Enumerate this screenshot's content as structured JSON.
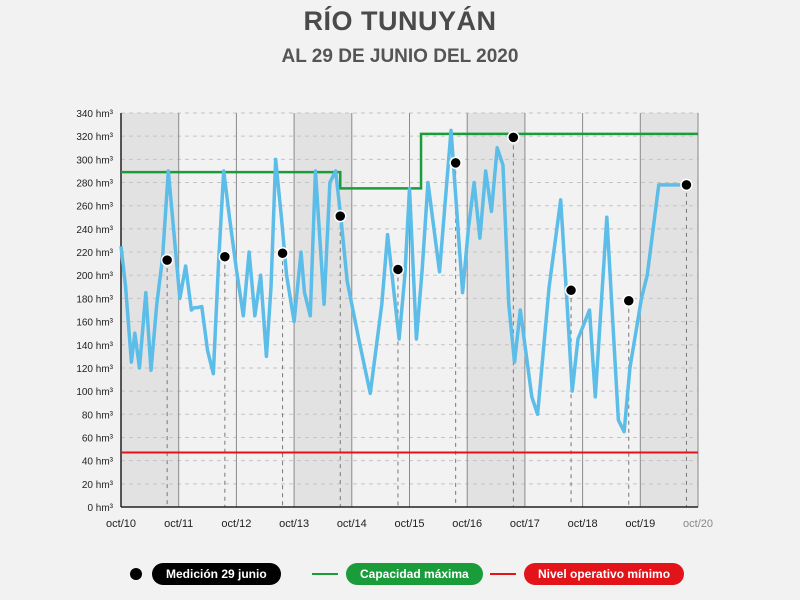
{
  "title": "RÍO TUNUYÁN",
  "subtitle": "AL 29 DE JUNIO DEL 2020",
  "colors": {
    "series": "#5bbde8",
    "capacity": "#1a9c3a",
    "minimum": "#e2141a",
    "marker": "#000000",
    "band": "#e2e2e2"
  },
  "legend": {
    "measurement": "Medición 29 junio",
    "capacity": "Capacidad máxima",
    "minimum": "Nivel operativo mínimo"
  },
  "chart_data": {
    "type": "line",
    "xlabel": "",
    "ylabel": "",
    "ylim": [
      0,
      340
    ],
    "y_ticks": [
      "0 hm³",
      "20 hm³",
      "40 hm³",
      "60 hm³",
      "80 hm³",
      "100 hm³",
      "120 hm³",
      "140 hm³",
      "160 hm³",
      "180 hm³",
      "200 hm³",
      "220 hm³",
      "240 hm³",
      "260 hm³",
      "280 hm³",
      "300 hm³",
      "320 hm³",
      "340 hm³"
    ],
    "x_ticks": [
      "oct/10",
      "oct/11",
      "oct/12",
      "oct/13",
      "oct/14",
      "oct/15",
      "oct/16",
      "oct/17",
      "oct/18",
      "oct/19",
      "oct/20"
    ],
    "xlim": [
      0,
      10
    ],
    "grid": true,
    "series": [
      {
        "x": [
          0,
          0.08,
          0.18,
          0.24,
          0.32,
          0.43,
          0.52,
          0.62,
          0.72,
          0.82,
          0.92,
          1.02,
          1.12,
          1.22,
          1.27,
          1.32,
          1.4,
          1.5,
          1.6,
          1.69,
          1.78,
          1.88,
          2.0,
          2.12,
          2.22,
          2.32,
          2.42,
          2.52,
          2.6,
          2.68,
          2.78,
          2.87,
          3.0,
          3.12,
          3.18,
          3.28,
          3.37,
          3.52,
          3.62,
          3.72,
          3.82,
          3.92,
          4.12,
          4.32,
          4.52,
          4.62,
          4.82,
          4.92,
          5.0,
          5.12,
          5.22,
          5.32,
          5.52,
          5.72,
          5.82,
          5.92,
          6.02,
          6.12,
          6.22,
          6.32,
          6.42,
          6.52,
          6.62,
          6.72,
          6.82,
          6.92,
          7.12,
          7.22,
          7.42,
          7.62,
          7.72,
          7.82,
          7.92,
          8.12,
          8.22,
          8.42,
          8.62,
          8.72,
          8.82,
          9.02,
          9.12,
          9.32,
          9.72
        ],
        "y": [
          225,
          190,
          125,
          150,
          120,
          185,
          118,
          175,
          215,
          290,
          235,
          180,
          208,
          170,
          172,
          172,
          173,
          135,
          115,
          210,
          290,
          250,
          205,
          165,
          220,
          165,
          200,
          130,
          190,
          300,
          250,
          200,
          160,
          220,
          185,
          165,
          290,
          175,
          280,
          290,
          245,
          195,
          145,
          98,
          175,
          235,
          145,
          200,
          275,
          145,
          205,
          280,
          203,
          325,
          255,
          185,
          240,
          280,
          232,
          290,
          255,
          310,
          295,
          175,
          125,
          170,
          95,
          80,
          190,
          265,
          185,
          100,
          145,
          170,
          95,
          250,
          75,
          65,
          120,
          180,
          200,
          278,
          278
        ]
      }
    ],
    "measurements": [
      {
        "x": 0.8,
        "y": 213
      },
      {
        "x": 1.8,
        "y": 216
      },
      {
        "x": 2.8,
        "y": 219
      },
      {
        "x": 3.8,
        "y": 251
      },
      {
        "x": 4.8,
        "y": 205
      },
      {
        "x": 5.8,
        "y": 297
      },
      {
        "x": 6.8,
        "y": 319
      },
      {
        "x": 7.8,
        "y": 187
      },
      {
        "x": 8.8,
        "y": 178
      },
      {
        "x": 9.8,
        "y": 278
      }
    ],
    "capacity": [
      {
        "x": 0,
        "y": 289
      },
      {
        "x": 3.8,
        "y": 289
      },
      {
        "x": 3.8,
        "y": 275
      },
      {
        "x": 5.2,
        "y": 275
      },
      {
        "x": 5.2,
        "y": 322
      },
      {
        "x": 10,
        "y": 322
      }
    ],
    "minimum": [
      {
        "x": 0,
        "y": 47
      },
      {
        "x": 10,
        "y": 47
      }
    ]
  }
}
